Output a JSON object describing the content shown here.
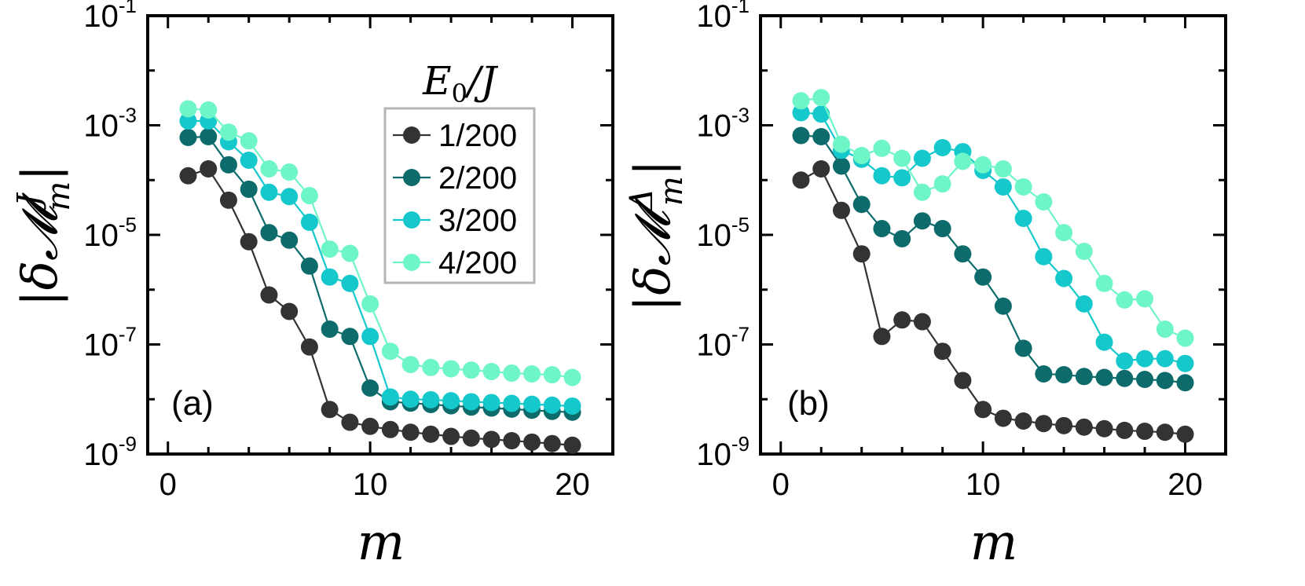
{
  "chart_data": [
    {
      "type": "line",
      "panel_label": "(a)",
      "xlabel": "m",
      "ylabel": "|δ𝓜",
      "ylabel_sup": "J",
      "ylabel_sub": "m",
      "xlim": [
        -1,
        22
      ],
      "ylim": [
        1e-09,
        0.1
      ],
      "yscale": "log",
      "xticks": [
        0,
        10,
        20
      ],
      "xtick_labels": [
        "0",
        "10",
        "20"
      ],
      "yticks": [
        -9,
        -7,
        -5,
        -3,
        -1
      ],
      "ytick_labels": [
        "10-9",
        "10-7",
        "10-5",
        "10-3",
        "10-1"
      ],
      "legend": {
        "title": "E0/J",
        "position": "top-right-inside"
      },
      "x": [
        1,
        2,
        3,
        4,
        5,
        6,
        7,
        8,
        9,
        10,
        11,
        12,
        13,
        14,
        15,
        16,
        17,
        18,
        19,
        20
      ],
      "series": [
        {
          "name": "1/200",
          "color": "#333333",
          "values": [
            0.00012,
            0.00016,
            4.3e-05,
            7.5e-06,
            8e-07,
            4e-07,
            9e-08,
            6.5e-09,
            3.8e-09,
            3.2e-09,
            2.8e-09,
            2.5e-09,
            2.3e-09,
            2.1e-09,
            1.95e-09,
            1.85e-09,
            1.75e-09,
            1.65e-09,
            1.55e-09,
            1.45e-09
          ]
        },
        {
          "name": "2/200",
          "color": "#0e6b6b",
          "values": [
            0.0006,
            0.00062,
            0.00019,
            6.8e-05,
            1.1e-05,
            8e-06,
            2.7e-06,
            1.9e-07,
            1.4e-07,
            1.6e-08,
            9e-09,
            8.5e-09,
            8e-09,
            7.6e-09,
            7.2e-09,
            6.9e-09,
            6.6e-09,
            6.3e-09,
            6e-09,
            5.8e-09
          ]
        },
        {
          "name": "3/200",
          "color": "#14c8cc",
          "values": [
            0.0012,
            0.0012,
            0.0005,
            0.00023,
            6e-05,
            5e-05,
            1.7e-05,
            1.7e-06,
            1.3e-06,
            1.4e-07,
            1.1e-08,
            1e-08,
            9.8e-09,
            9.4e-09,
            9e-09,
            8.7e-09,
            8.4e-09,
            8.1e-09,
            7.8e-09,
            7.5e-09
          ]
        },
        {
          "name": "4/200",
          "color": "#6ef5c8",
          "values": [
            0.002,
            0.0019,
            0.00075,
            0.00052,
            0.00016,
            0.00014,
            5.2e-05,
            5.5e-06,
            4.6e-06,
            5.5e-07,
            7.5e-08,
            4.3e-08,
            3.8e-08,
            3.6e-08,
            3.4e-08,
            3.2e-08,
            3e-08,
            2.9e-08,
            2.8e-08,
            2.5e-08
          ]
        }
      ]
    },
    {
      "type": "line",
      "panel_label": "(b)",
      "xlabel": "m",
      "ylabel": "|δ𝓜",
      "ylabel_sup": "Δ",
      "ylabel_sub": "m",
      "xlim": [
        -1,
        22
      ],
      "ylim": [
        1e-09,
        0.1
      ],
      "yscale": "log",
      "xticks": [
        0,
        10,
        20
      ],
      "xtick_labels": [
        "0",
        "10",
        "20"
      ],
      "yticks": [
        -9,
        -7,
        -5,
        -3,
        -1
      ],
      "ytick_labels": [
        "10-9",
        "10-7",
        "10-5",
        "10-3",
        "10-1"
      ],
      "x": [
        1,
        2,
        3,
        4,
        5,
        6,
        7,
        8,
        9,
        10,
        11,
        12,
        13,
        14,
        15,
        16,
        17,
        18,
        19,
        20
      ],
      "series": [
        {
          "name": "1/200",
          "color": "#333333",
          "values": [
            0.0001,
            0.00016,
            2.8e-05,
            4.5e-06,
            1.4e-07,
            2.8e-07,
            2.6e-07,
            7.5e-08,
            2.2e-08,
            6.5e-09,
            4.5e-09,
            4e-09,
            3.6e-09,
            3.3e-09,
            3.1e-09,
            2.9e-09,
            2.7e-09,
            2.6e-09,
            2.5e-09,
            2.3e-09
          ]
        },
        {
          "name": "2/200",
          "color": "#0e6b6b",
          "values": [
            0.00065,
            0.00062,
            0.00018,
            3.6e-05,
            1.3e-05,
            8.5e-06,
            1.8e-05,
            1.3e-05,
            4.5e-06,
            1.7e-06,
            5e-07,
            8.5e-08,
            2.9e-08,
            2.8e-08,
            2.6e-08,
            2.5e-08,
            2.4e-08,
            2.3e-08,
            2.2e-08,
            2e-08
          ]
        },
        {
          "name": "3/200",
          "color": "#14c8cc",
          "values": [
            0.0017,
            0.0016,
            0.00035,
            0.00024,
            0.00012,
            0.00011,
            0.00025,
            0.00039,
            0.00033,
            0.00015,
            7.5e-05,
            2e-05,
            4e-06,
            1.6e-06,
            5.5e-07,
            1.1e-07,
            5e-08,
            5.5e-08,
            5.5e-08,
            4.5e-08
          ]
        },
        {
          "name": "4/200",
          "color": "#6ef5c8",
          "values": [
            0.0028,
            0.0032,
            0.00045,
            0.00028,
            0.00038,
            0.00025,
            6e-05,
            8.5e-05,
            0.00022,
            0.00019,
            0.00016,
            7.5e-05,
            4e-05,
            1.1e-05,
            5e-06,
            1.3e-06,
            6.5e-07,
            6.8e-07,
            1.9e-07,
            1.3e-07
          ]
        }
      ]
    }
  ]
}
